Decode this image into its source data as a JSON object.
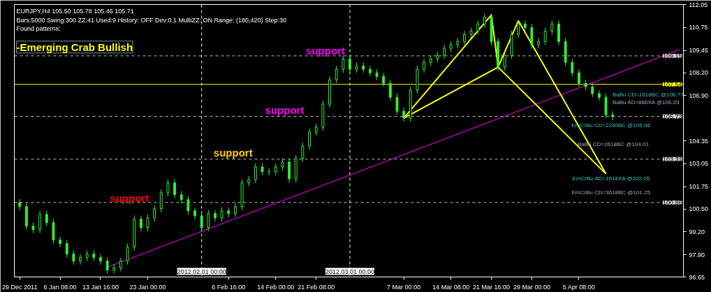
{
  "chart_data": {
    "type": "candlestick",
    "title": "EURJPY,H4  105.50 105.78 105.46 105.71",
    "subtitle": "Bars:5000  Swing:300  ZZ:41  Used:9  History: OFF Dev:0.1  MultiZZ: ON  Range: (180,420)  Step:30",
    "categories": [
      "29 Dec 2011",
      null,
      null,
      null,
      null,
      null,
      "6 Jan 08:00",
      null,
      null,
      null,
      null,
      null,
      "13 Jan 16:00",
      null,
      null,
      null,
      null,
      null,
      null,
      "23 Jan 00:00",
      null,
      null,
      null,
      null,
      null,
      null,
      null,
      "2012.02.01 00:00",
      null,
      null,
      null,
      "6 Feb 16:00",
      null,
      null,
      null,
      null,
      null,
      null,
      "14 Feb 00:00",
      null,
      null,
      null,
      null,
      null,
      "21 Feb 08:00",
      null,
      null,
      null,
      null,
      "2012.03.01 00:00",
      null,
      null,
      null,
      null,
      null,
      null,
      null,
      "7 Mar 00:00",
      null,
      null,
      null,
      null,
      null,
      null,
      "14 Mar 08:00",
      null,
      null,
      null,
      null,
      null,
      "21 Mar 16:00",
      null,
      null,
      null,
      null,
      null,
      "29 Mar 00:00",
      null,
      null,
      null,
      null,
      null,
      null,
      "5 Apr 08:00",
      null,
      null,
      null,
      null,
      null,
      null,
      null,
      null,
      null,
      null,
      null,
      null,
      null,
      null,
      null
    ],
    "ohlc": [
      [
        100.86,
        101.06,
        100.43,
        100.63
      ],
      [
        100.63,
        100.83,
        99.32,
        99.52
      ],
      [
        99.52,
        99.72,
        99.13,
        99.33
      ],
      [
        99.33,
        100.39,
        99.13,
        100.19
      ],
      [
        100.19,
        100.39,
        99.52,
        99.72
      ],
      [
        99.72,
        99.92,
        98.54,
        98.74
      ],
      [
        98.74,
        98.94,
        98.34,
        98.54
      ],
      [
        98.54,
        98.74,
        97.75,
        97.95
      ],
      [
        97.95,
        98.15,
        97.35,
        97.55
      ],
      [
        97.55,
        97.95,
        97.35,
        97.75
      ],
      [
        97.75,
        98.15,
        97.55,
        97.95
      ],
      [
        97.95,
        98.15,
        97.55,
        97.75
      ],
      [
        97.75,
        97.95,
        97.35,
        97.55
      ],
      [
        97.55,
        97.75,
        96.84,
        97.04
      ],
      [
        97.04,
        97.36,
        96.84,
        97.16
      ],
      [
        97.16,
        97.75,
        96.96,
        97.55
      ],
      [
        97.55,
        98.54,
        97.35,
        98.34
      ],
      [
        98.34,
        100.12,
        98.14,
        99.92
      ],
      [
        99.92,
        100.12,
        99.24,
        99.44
      ],
      [
        99.44,
        100.19,
        99.24,
        99.99
      ],
      [
        99.99,
        100.71,
        99.79,
        100.51
      ],
      [
        100.51,
        101.61,
        100.31,
        101.41
      ],
      [
        101.41,
        102.17,
        101.21,
        101.97
      ],
      [
        101.97,
        102.17,
        101.1,
        101.3
      ],
      [
        101.3,
        101.5,
        100.82,
        101.02
      ],
      [
        101.02,
        101.22,
        100.19,
        100.39
      ],
      [
        100.39,
        100.59,
        99.91,
        100.11
      ],
      [
        100.11,
        100.31,
        99.24,
        99.44
      ],
      [
        99.44,
        100.43,
        99.24,
        100.23
      ],
      [
        100.23,
        100.43,
        99.79,
        99.99
      ],
      [
        99.99,
        100.59,
        99.79,
        100.39
      ],
      [
        100.39,
        100.59,
        100.03,
        100.23
      ],
      [
        100.23,
        100.83,
        100.03,
        100.63
      ],
      [
        100.63,
        102.17,
        100.43,
        101.97
      ],
      [
        101.97,
        102.36,
        101.77,
        102.16
      ],
      [
        102.16,
        103.07,
        101.96,
        102.87
      ],
      [
        102.87,
        103.07,
        102.4,
        102.6
      ],
      [
        102.6,
        102.8,
        102.4,
        102.6
      ],
      [
        102.6,
        103.07,
        102.4,
        102.87
      ],
      [
        102.87,
        103.35,
        102.67,
        103.15
      ],
      [
        103.15,
        103.35,
        102.0,
        102.2
      ],
      [
        102.2,
        103.55,
        102.0,
        103.35
      ],
      [
        103.35,
        104.25,
        103.15,
        104.05
      ],
      [
        104.05,
        105.04,
        103.85,
        104.84
      ],
      [
        104.84,
        105.32,
        104.64,
        105.12
      ],
      [
        105.12,
        106.62,
        104.92,
        106.42
      ],
      [
        106.42,
        108.0,
        106.22,
        107.8
      ],
      [
        107.8,
        108.59,
        107.6,
        108.39
      ],
      [
        108.39,
        109.18,
        108.19,
        108.98
      ],
      [
        108.98,
        109.18,
        108.19,
        108.39
      ],
      [
        108.39,
        108.78,
        108.19,
        108.58
      ],
      [
        108.58,
        108.78,
        108.19,
        108.39
      ],
      [
        108.39,
        108.59,
        107.99,
        108.19
      ],
      [
        108.19,
        108.39,
        107.79,
        107.99
      ],
      [
        107.99,
        108.19,
        107.4,
        107.6
      ],
      [
        107.6,
        107.8,
        106.61,
        106.81
      ],
      [
        106.81,
        107.01,
        105.82,
        106.02
      ],
      [
        106.02,
        106.22,
        105.43,
        105.63
      ],
      [
        105.63,
        107.41,
        105.43,
        107.21
      ],
      [
        107.21,
        108.59,
        107.01,
        108.39
      ],
      [
        108.39,
        108.98,
        108.19,
        108.78
      ],
      [
        108.78,
        109.18,
        108.58,
        108.98
      ],
      [
        108.98,
        109.38,
        108.78,
        109.18
      ],
      [
        109.18,
        109.77,
        108.98,
        109.57
      ],
      [
        109.57,
        109.97,
        109.37,
        109.77
      ],
      [
        109.77,
        110.16,
        109.57,
        109.96
      ],
      [
        109.96,
        110.56,
        109.76,
        110.36
      ],
      [
        110.36,
        110.75,
        110.16,
        110.55
      ],
      [
        110.55,
        111.15,
        110.35,
        110.95
      ],
      [
        110.95,
        111.54,
        110.75,
        111.34
      ],
      [
        111.34,
        111.54,
        109.76,
        109.96
      ],
      [
        109.96,
        110.16,
        108.31,
        108.51
      ],
      [
        108.51,
        109.38,
        108.31,
        109.18
      ],
      [
        109.18,
        110.56,
        108.98,
        110.36
      ],
      [
        110.36,
        111.15,
        110.16,
        110.95
      ],
      [
        110.95,
        111.15,
        110.55,
        110.75
      ],
      [
        110.75,
        110.95,
        109.57,
        109.77
      ],
      [
        109.77,
        110.16,
        109.57,
        109.96
      ],
      [
        109.96,
        110.75,
        109.76,
        110.55
      ],
      [
        110.55,
        111.15,
        110.35,
        110.95
      ],
      [
        110.95,
        111.15,
        109.76,
        109.96
      ],
      [
        109.96,
        110.16,
        108.58,
        108.78
      ],
      [
        108.78,
        108.98,
        107.99,
        108.19
      ],
      [
        108.19,
        108.39,
        107.4,
        107.6
      ],
      [
        107.6,
        107.8,
        107.2,
        107.4
      ],
      [
        107.4,
        107.6,
        106.81,
        107.01
      ],
      [
        107.01,
        107.21,
        106.61,
        106.81
      ],
      [
        106.81,
        107.01,
        105.62,
        105.82
      ],
      [
        105.82,
        106.02,
        105.5,
        105.71
      ],
      null,
      null,
      null,
      null,
      null,
      null,
      null,
      null,
      null,
      null
    ],
    "series": [
      {
        "type": "line",
        "color": "#ff00ff",
        "values": [
          null,
          null,
          null,
          null,
          null,
          null,
          null,
          null,
          null,
          null,
          null,
          null,
          null,
          97.2,
          null,
          null,
          null,
          null,
          null,
          null,
          null,
          null,
          null,
          null,
          null,
          null,
          null,
          null,
          null,
          null,
          null,
          null,
          null,
          null,
          null,
          null,
          null,
          null,
          null,
          null,
          null,
          null,
          null,
          null,
          null,
          null,
          null,
          null,
          null,
          null,
          null,
          null,
          null,
          null,
          null,
          null,
          null,
          null,
          null,
          null,
          null,
          null,
          null,
          null,
          null,
          null,
          null,
          null,
          null,
          null,
          null,
          null,
          null,
          null,
          null,
          null,
          null,
          null,
          null,
          null,
          null,
          null,
          null,
          null,
          null,
          null,
          null,
          null,
          null,
          null,
          null,
          null,
          null,
          null,
          null,
          null,
          null,
          null,
          109.51
        ]
      },
      {
        "type": "line",
        "color": "#ffff00",
        "values": [
          null,
          null,
          null,
          null,
          null,
          null,
          null,
          null,
          null,
          null,
          null,
          null,
          null,
          null,
          null,
          null,
          null,
          null,
          null,
          null,
          null,
          null,
          null,
          null,
          null,
          null,
          null,
          null,
          null,
          null,
          null,
          null,
          null,
          null,
          null,
          null,
          null,
          null,
          null,
          null,
          null,
          null,
          null,
          null,
          null,
          null,
          null,
          null,
          null,
          null,
          null,
          null,
          null,
          null,
          null,
          null,
          null,
          105.63,
          null,
          null,
          null,
          null,
          null,
          null,
          null,
          null,
          null,
          null,
          null,
          null,
          111.46,
          108.51,
          null,
          null,
          111.14,
          null,
          null,
          null,
          null,
          null,
          null,
          null,
          null,
          null,
          null,
          null,
          null,
          102.48,
          null,
          null,
          null,
          null,
          null,
          null,
          null,
          null,
          null,
          null,
          null
        ]
      },
      {
        "type": "line",
        "color": "#ffff00",
        "values": [
          null,
          null,
          null,
          null,
          null,
          null,
          null,
          null,
          null,
          null,
          null,
          null,
          null,
          null,
          null,
          null,
          null,
          null,
          null,
          null,
          null,
          null,
          null,
          null,
          null,
          null,
          null,
          null,
          null,
          null,
          null,
          null,
          null,
          null,
          null,
          null,
          null,
          null,
          null,
          null,
          null,
          null,
          null,
          null,
          null,
          null,
          null,
          null,
          null,
          null,
          null,
          null,
          null,
          null,
          null,
          null,
          null,
          105.63,
          null,
          null,
          null,
          null,
          null,
          null,
          null,
          null,
          null,
          null,
          null,
          null,
          null,
          108.51,
          null,
          null,
          null,
          null,
          null,
          null,
          null,
          null,
          null,
          null,
          null,
          null,
          null,
          null,
          null,
          102.48,
          null,
          null,
          null,
          null,
          null,
          null,
          null,
          null,
          null,
          null,
          null
        ]
      }
    ],
    "ylim": [
      96.65,
      112.05
    ],
    "yticks": [
      112.05,
      110.75,
      109.45,
      {
        "value": 108.2,
        "label": "108.20"
      },
      {
        "value": 106.9,
        "label": "106.90"
      },
      104.35,
      103.05,
      101.75,
      {
        "value": 100.5,
        "label": "100.50"
      },
      {
        "value": 99.2,
        "label": "99.20"
      },
      {
        "value": 97.9,
        "label": "97.90"
      },
      96.65
    ],
    "ref_lines": [
      {
        "axis": "y",
        "value": 109.15,
        "label": "109.15",
        "color": "#c0c0c0",
        "line_style": "dashed"
      },
      {
        "axis": "y",
        "value": 107.54,
        "label": "107.54",
        "color": "#ffff00",
        "line_style": "solid"
      },
      {
        "axis": "y",
        "value": 105.73,
        "label": "105.73",
        "color": "#c0c0c0",
        "line_style": "dashed"
      },
      {
        "axis": "y",
        "value": 103.31,
        "label": "103.31",
        "color": "#c0c0c0",
        "line_style": "dashed"
      },
      {
        "axis": "y",
        "value": 100.86,
        "label": "100.86",
        "color": "#c0c0c0",
        "line_style": "dashed"
      },
      {
        "axis": "x",
        "value": "2012.02.01 00:00",
        "color": "#ffffff",
        "line_style": "dashed"
      },
      {
        "axis": "x",
        "value": "2012.03.01 00:00",
        "color": "#ffffff",
        "line_style": "dashed"
      }
    ],
    "annotations": [
      "Found patterns:",
      "-Emerging Crab Bullish",
      "support",
      "support",
      "support",
      "support",
      "BaBu CD=1618BC   @106.77",
      "BaBu AD=886XA   @106.29",
      "EmCrBu CD=2240BC   @105.06",
      "BaBu CD=2618BC   @104.01",
      "EmCrBu AD=1618XA   @102.05",
      "EmCrBu CD=3618BC   @101.25"
    ]
  }
}
